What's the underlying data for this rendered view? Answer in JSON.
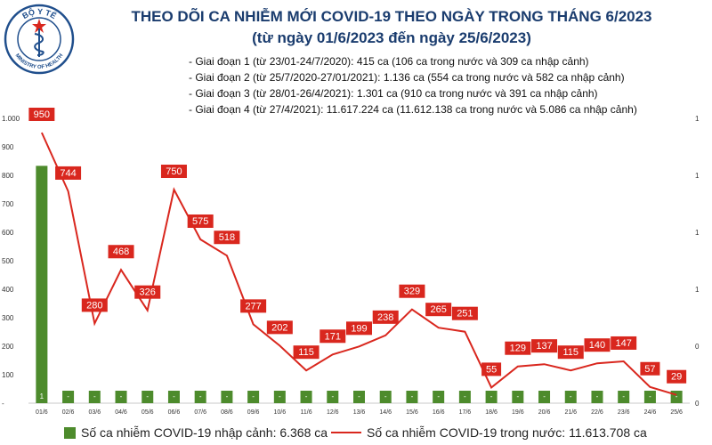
{
  "logo": {
    "top_text": "BỘ Y TẾ",
    "bottom_text": "MINISTRY OF HEALTH",
    "colors": {
      "ring": "#1f4e8c",
      "emblem": "#d9271e",
      "star": "#f2c300"
    }
  },
  "header": {
    "title": "THEO DÕI CA NHIỄM MỚI COVID-19 THEO NGÀY TRONG THÁNG 6/2023",
    "subtitle": "(từ ngày 01/6/2023 đến ngày 25/6/2023)"
  },
  "phases": [
    "- Giai đoạn 1 (từ 23/01-24/7/2020): 415 ca (106 ca trong nước và 309 ca nhập cảnh)",
    "- Giai đoạn 2 (từ 25/7/2020-27/01/2021): 1.136 ca (554 ca trong nước và 582 ca nhập cảnh)",
    "- Giai đoạn 3 (từ 28/01-26/4/2021): 1.301 ca (910 ca trong nước và 391 ca nhập cảnh)",
    "- Giai đoạn 4 (từ 27/4/2021): 11.617.224 ca (11.612.138 ca trong nước và 5.086 ca nhập cảnh)"
  ],
  "legend": {
    "bar_label": "Số ca nhiễm COVID-19 nhập cảnh: 6.368 ca",
    "line_label": "Số ca nhiễm COVID-19 trong nước: 11.613.708 ca"
  },
  "colors": {
    "bar": "#4d8b2c",
    "line": "#d9271e",
    "label_box": "#d9271e",
    "title": "#1a3c6e"
  },
  "chart_data": {
    "type": "bar",
    "categories": [
      "01/6",
      "02/6",
      "03/6",
      "04/6",
      "05/6",
      "06/6",
      "07/6",
      "08/6",
      "09/6",
      "10/6",
      "11/6",
      "12/6",
      "13/6",
      "14/6",
      "15/6",
      "16/6",
      "17/6",
      "18/6",
      "19/6",
      "20/6",
      "21/6",
      "22/6",
      "23/6",
      "24/6",
      "25/6"
    ],
    "series": [
      {
        "type": "bar",
        "axis": "right",
        "values": [
          1,
          0,
          0,
          0,
          0,
          0,
          0,
          0,
          0,
          0,
          0,
          0,
          0,
          0,
          0,
          0,
          0,
          0,
          0,
          0,
          0,
          0,
          0,
          0,
          0
        ],
        "value_labels": [
          "1",
          "-",
          "-",
          "-",
          "-",
          "-",
          "-",
          "-",
          "-",
          "-",
          "-",
          "-",
          "-",
          "-",
          "-",
          "-",
          "-",
          "-",
          "-",
          "-",
          "-",
          "-",
          "-",
          "-",
          "-"
        ]
      },
      {
        "type": "line",
        "axis": "left",
        "values": [
          950,
          744,
          280,
          468,
          326,
          750,
          575,
          518,
          277,
          202,
          115,
          171,
          199,
          238,
          329,
          265,
          251,
          55,
          129,
          137,
          115,
          140,
          147,
          57,
          29
        ]
      }
    ],
    "left_axis": {
      "ylim": [
        0,
        1000
      ],
      "ticks": [
        "-",
        "100",
        "200",
        "300",
        "400",
        "500",
        "600",
        "700",
        "800",
        "900",
        "1.000"
      ]
    },
    "right_axis": {
      "ylim": [
        0,
        1.2
      ],
      "ticks": [
        "0",
        "0",
        "1",
        "1",
        "1",
        "1"
      ]
    },
    "grid": false,
    "legend_position": "bottom"
  }
}
